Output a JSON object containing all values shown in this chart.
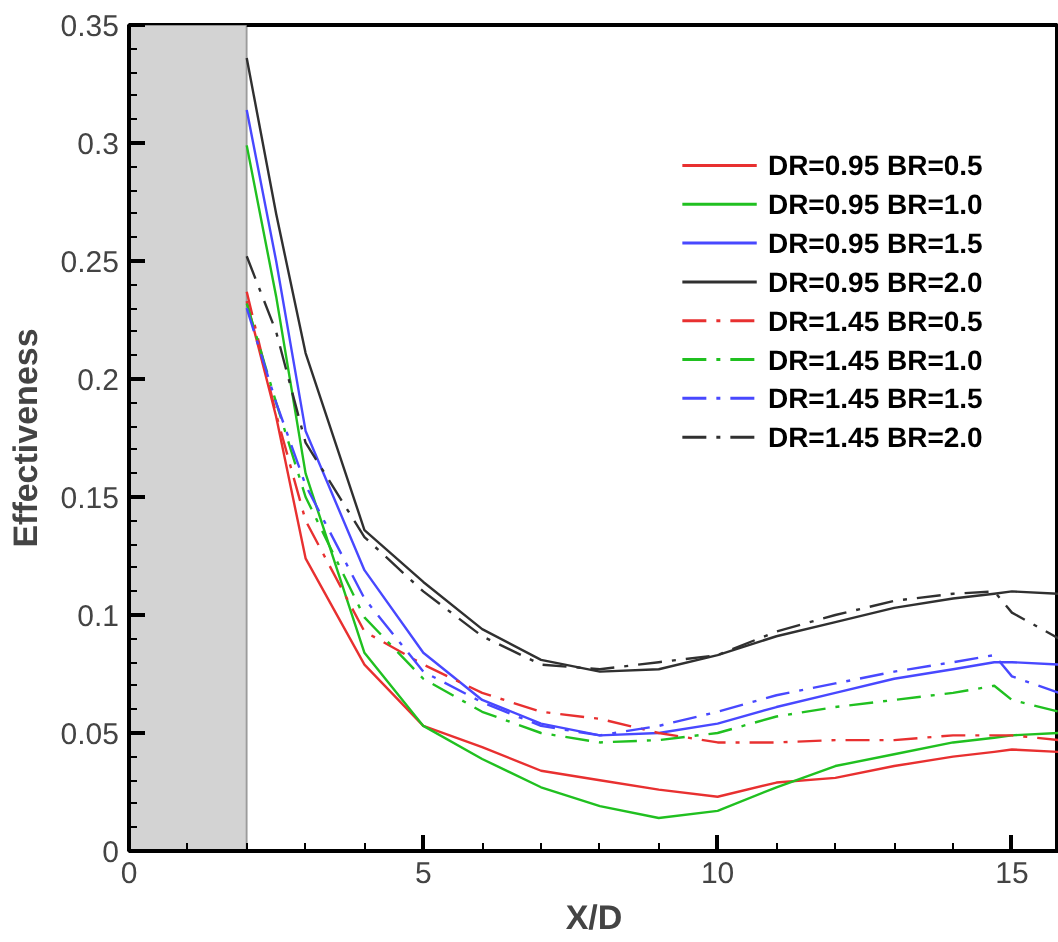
{
  "chart_data": {
    "type": "line",
    "xlabel": "X/D",
    "ylabel": "Effectiveness",
    "x": [
      2,
      2.5,
      3,
      4,
      5,
      6,
      7,
      8,
      9,
      10,
      11,
      12,
      13,
      14,
      14.7,
      15,
      15.8
    ],
    "series": [
      {
        "name": "DR=0.95 BR=0.5",
        "color": "#e83030",
        "line_style": "solid",
        "values": [
          0.233,
          0.184,
          0.124,
          0.079,
          0.053,
          0.044,
          0.034,
          0.03,
          0.026,
          0.023,
          0.029,
          0.031,
          0.036,
          0.04,
          0.042,
          0.043,
          0.042
        ]
      },
      {
        "name": "DR=0.95 BR=1.0",
        "color": "#20c020",
        "line_style": "solid",
        "values": [
          0.299,
          0.235,
          0.16,
          0.084,
          0.053,
          0.039,
          0.027,
          0.019,
          0.014,
          0.017,
          0.027,
          0.036,
          0.041,
          0.046,
          0.048,
          0.049,
          0.05
        ]
      },
      {
        "name": "DR=0.95 BR=1.5",
        "color": "#4848ff",
        "line_style": "solid",
        "values": [
          0.314,
          0.25,
          0.178,
          0.119,
          0.084,
          0.064,
          0.054,
          0.049,
          0.05,
          0.054,
          0.061,
          0.067,
          0.073,
          0.077,
          0.08,
          0.08,
          0.079
        ]
      },
      {
        "name": "DR=0.95 BR=2.0",
        "color": "#303030",
        "line_style": "solid",
        "values": [
          0.336,
          0.27,
          0.211,
          0.136,
          0.114,
          0.094,
          0.081,
          0.076,
          0.077,
          0.083,
          0.091,
          0.097,
          0.103,
          0.107,
          0.109,
          0.11,
          0.109
        ]
      },
      {
        "name": "DR=1.45 BR=0.5",
        "color": "#e83030",
        "line_style": "dashdot",
        "values": [
          0.237,
          0.185,
          0.14,
          0.093,
          0.079,
          0.067,
          0.059,
          0.056,
          0.05,
          0.046,
          0.046,
          0.047,
          0.047,
          0.049,
          0.049,
          0.049,
          0.047
        ]
      },
      {
        "name": "DR=1.45 BR=1.0",
        "color": "#20c020",
        "line_style": "dashdot",
        "values": [
          0.232,
          0.19,
          0.15,
          0.099,
          0.073,
          0.059,
          0.05,
          0.046,
          0.047,
          0.05,
          0.057,
          0.061,
          0.064,
          0.067,
          0.07,
          0.064,
          0.059
        ]
      },
      {
        "name": "DR=1.45 BR=1.5",
        "color": "#4848ff",
        "line_style": "dashdot",
        "values": [
          0.23,
          0.19,
          0.155,
          0.107,
          0.076,
          0.063,
          0.053,
          0.049,
          0.053,
          0.059,
          0.066,
          0.071,
          0.076,
          0.08,
          0.083,
          0.074,
          0.067
        ]
      },
      {
        "name": "DR=1.45 BR=2.0",
        "color": "#303030",
        "line_style": "dashdot",
        "values": [
          0.252,
          0.22,
          0.173,
          0.133,
          0.11,
          0.091,
          0.079,
          0.077,
          0.08,
          0.083,
          0.093,
          0.1,
          0.106,
          0.109,
          0.11,
          0.101,
          0.09
        ]
      }
    ],
    "xlim": [
      0,
      15.8
    ],
    "ylim": [
      0,
      0.35
    ],
    "xticks": [
      0,
      5,
      10,
      15
    ],
    "yticks": [
      0,
      0.05,
      0.1,
      0.15,
      0.2,
      0.25,
      0.3,
      0.35
    ],
    "bands": [
      {
        "axis": "x",
        "from": 0,
        "to": 2,
        "color": "#d3d3d3"
      }
    ],
    "grid": false,
    "legend": "top right"
  }
}
